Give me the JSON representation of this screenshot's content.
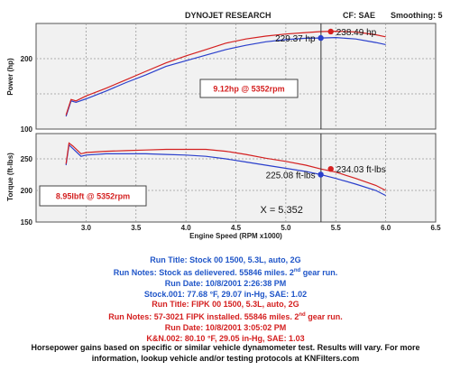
{
  "header": {
    "title": "DYNOJET RESEARCH",
    "cf": "CF: SAE",
    "smoothing": "Smoothing: 5"
  },
  "colors": {
    "stock": "#2a3fcc",
    "fipk": "#d42020",
    "grid": "#9a9a9a",
    "panel_bg": "#f1f1f1",
    "marker": "#333333"
  },
  "chart_data": [
    {
      "type": "line",
      "ylabel": "Power (hp)",
      "ylim": [
        100,
        250
      ],
      "yticks": [
        100,
        200
      ],
      "xlim": [
        2.5,
        6.5
      ],
      "grid": true,
      "series": [
        {
          "name": "Stock 00 1500",
          "color": "blue",
          "x": [
            2.8,
            2.85,
            2.9,
            3.0,
            3.2,
            3.4,
            3.6,
            3.8,
            4.0,
            4.2,
            4.4,
            4.6,
            4.8,
            5.0,
            5.2,
            5.35,
            5.5,
            5.7,
            5.9,
            6.0
          ],
          "values": [
            118,
            140,
            138,
            143,
            154,
            166,
            177,
            189,
            197,
            205,
            213,
            219,
            224,
            227,
            229,
            229.37,
            230,
            228,
            223,
            220
          ]
        },
        {
          "name": "FIPK 00 1500",
          "color": "red",
          "x": [
            2.8,
            2.85,
            2.9,
            3.0,
            3.2,
            3.4,
            3.6,
            3.8,
            4.0,
            4.2,
            4.4,
            4.6,
            4.8,
            5.0,
            5.2,
            5.35,
            5.5,
            5.7,
            5.9,
            6.0
          ],
          "values": [
            120,
            142,
            140,
            147,
            158,
            170,
            182,
            194,
            204,
            213,
            222,
            228,
            232,
            235,
            237,
            238.49,
            239,
            238,
            234,
            231
          ]
        }
      ],
      "annotations": [
        {
          "text": "229.37 hp",
          "x": 5.35,
          "y": 229.37,
          "color": "blue"
        },
        {
          "text": "238.49 hp",
          "x": 5.45,
          "y": 238.49,
          "color": "red"
        },
        {
          "text": "9.12hp @ 5352rpm",
          "color": "red"
        }
      ]
    },
    {
      "type": "line",
      "ylabel": "Torque (ft-lbs)",
      "ylim": [
        150,
        290
      ],
      "yticks": [
        150,
        200,
        250
      ],
      "xlim": [
        2.5,
        6.5
      ],
      "xticks": [
        3.0,
        3.5,
        4.0,
        4.5,
        5.0,
        5.5,
        6.0,
        6.5
      ],
      "xlabel": "Engine Speed (RPM x1000)",
      "grid": true,
      "series": [
        {
          "name": "Stock 00 1500",
          "color": "blue",
          "x": [
            2.8,
            2.83,
            2.87,
            2.95,
            3.0,
            3.2,
            3.4,
            3.6,
            3.8,
            4.0,
            4.2,
            4.4,
            4.6,
            4.8,
            5.0,
            5.2,
            5.35,
            5.5,
            5.7,
            5.9,
            6.0
          ],
          "values": [
            240,
            272,
            266,
            254,
            256,
            258,
            258,
            258,
            257,
            256,
            254,
            250,
            245,
            240,
            235,
            230,
            225.08,
            219,
            210,
            200,
            192
          ]
        },
        {
          "name": "FIPK 00 1500",
          "color": "red",
          "x": [
            2.8,
            2.83,
            2.87,
            2.95,
            3.0,
            3.2,
            3.4,
            3.6,
            3.8,
            4.0,
            4.2,
            4.4,
            4.6,
            4.8,
            5.0,
            5.2,
            5.35,
            5.5,
            5.7,
            5.9,
            6.0
          ],
          "values": [
            242,
            275,
            270,
            258,
            260,
            262,
            263,
            264,
            265,
            265,
            265,
            262,
            257,
            251,
            246,
            240,
            234.03,
            229,
            219,
            208,
            200
          ]
        }
      ],
      "annotations": [
        {
          "text": "225.08 ft-lbs",
          "x": 5.35,
          "y": 225.08,
          "color": "blue"
        },
        {
          "text": "234.03 ft-lbs",
          "x": 5.45,
          "y": 234.03,
          "color": "red"
        },
        {
          "text": "8.95lbft @ 5352rpm",
          "color": "red"
        },
        {
          "text": "X = 5.352",
          "x": 5.352
        }
      ]
    }
  ],
  "run_stock": {
    "title": "Run Title: Stock 00 1500, 5.3L, auto, 2G",
    "notes_pre": "Run Notes: Stock as delievered. 55846 miles. 2",
    "notes_sup": "nd",
    "notes_post": " gear run.",
    "date": "Run Date: 10/8/2001 2:26:38 PM",
    "file": "Stock.001: 77.68 °F, 29.07 in-Hg, SAE: 1.02"
  },
  "run_fipk": {
    "title": "Run Title: FIPK 00 1500, 5.3L, auto, 2G",
    "notes_pre": "Run Notes: 57-3021 FIPK installed. 55846 miles. 2",
    "notes_sup": "nd",
    "notes_post": " gear run.",
    "date": "Run Date: 10/8/2001 3:05:02 PM",
    "file": "K&N.002: 80.10 °F, 29.05 in-Hg, SAE: 1.03"
  },
  "footer": {
    "line1": "Horsepower gains based on specific or similar vehicle dynamometer test. Results will vary. For more",
    "line2": "information, lookup vehicle and/or testing protocols at KNFilters.com"
  }
}
